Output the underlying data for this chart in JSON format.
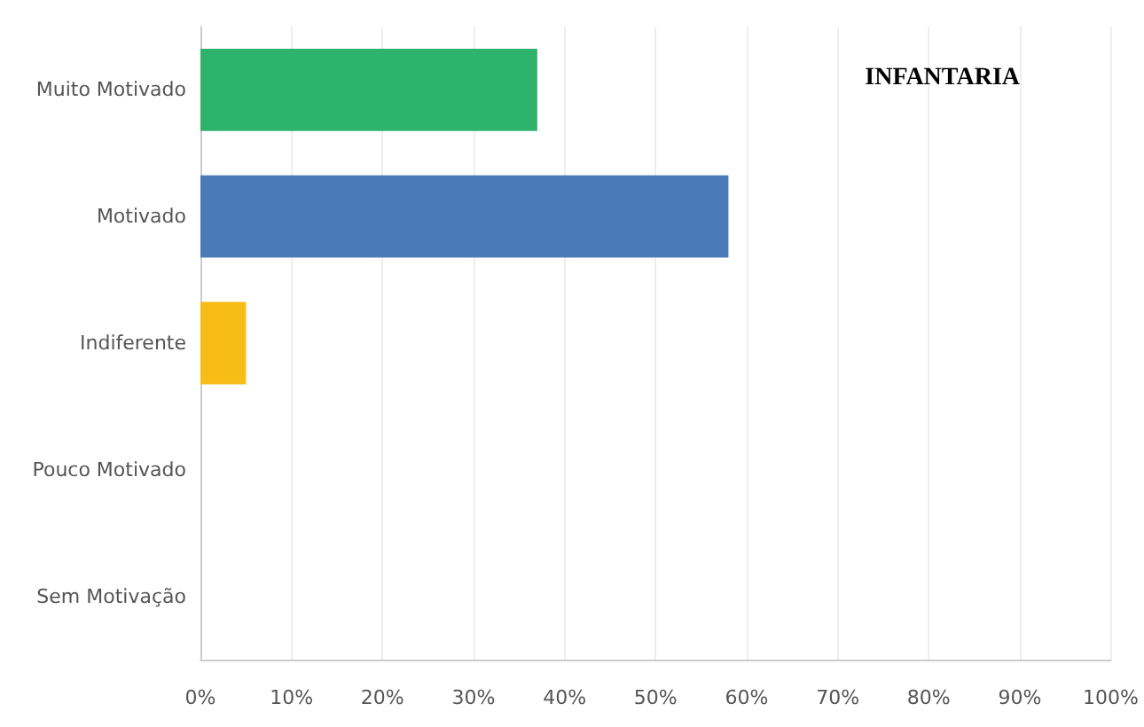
{
  "chart_data": {
    "type": "bar",
    "orientation": "horizontal",
    "title": "INFANTARIA",
    "categories": [
      "Muito Motivado",
      "Motivado",
      "Indiferente",
      "Pouco Motivado",
      "Sem Motivação"
    ],
    "values": [
      37,
      58,
      5,
      null,
      null
    ],
    "colors": [
      "#2db36b",
      "#4a7ab8",
      "#f7bc16",
      "#2db36b",
      "#2db36b"
    ],
    "xlim": [
      0,
      100
    ],
    "xticks": [
      {
        "value": 0,
        "label": "0%"
      },
      {
        "value": 10,
        "label": "10%"
      },
      {
        "value": 20,
        "label": "20%"
      },
      {
        "value": 30,
        "label": "30%"
      },
      {
        "value": 40,
        "label": "40%"
      },
      {
        "value": 50,
        "label": "50%"
      },
      {
        "value": 60,
        "label": "60%"
      },
      {
        "value": 70,
        "label": "70%"
      },
      {
        "value": 80,
        "label": "80%"
      },
      {
        "value": 90,
        "label": "90%"
      },
      {
        "value": 100,
        "label": "100%"
      }
    ],
    "grid": "x"
  }
}
